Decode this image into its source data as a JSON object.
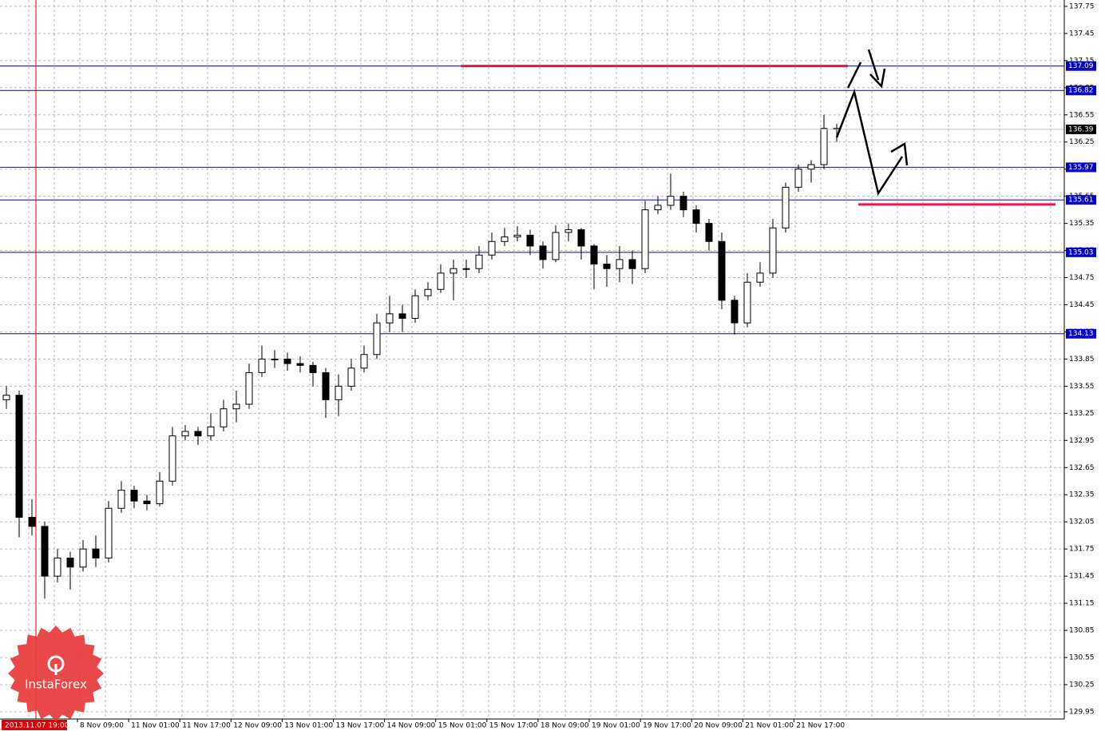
{
  "chart_data": {
    "type": "candlestick",
    "brand": "InstaForex",
    "x_labels": [
      "2013.11.07 19:00",
      "8 Nov 09:00",
      "11 Nov 01:00",
      "11 Nov 17:00",
      "12 Nov 09:00",
      "13 Nov 01:00",
      "13 Nov 17:00",
      "14 Nov 09:00",
      "15 Nov 01:00",
      "15 Nov 17:00",
      "18 Nov 09:00",
      "19 Nov 01:00",
      "19 Nov 17:00",
      "20 Nov 09:00",
      "21 Nov 01:00",
      "21 Nov 17:00"
    ],
    "ylim": [
      129.87,
      137.82
    ],
    "yticks": [
      129.95,
      130.25,
      130.55,
      130.85,
      131.15,
      131.45,
      131.75,
      132.05,
      132.35,
      132.65,
      132.95,
      133.25,
      133.55,
      133.85,
      134.15,
      134.45,
      134.75,
      135.05,
      135.35,
      135.65,
      135.95,
      136.25,
      136.55,
      136.85,
      137.15,
      137.45,
      137.75
    ],
    "grid": true,
    "levels": [
      137.09,
      136.82,
      135.97,
      135.61,
      135.03,
      134.13
    ],
    "levels_color": "#0000c8",
    "marked_levels": [
      137.09,
      135.56
    ],
    "marked_color": "#e8174a",
    "current_price": 136.39,
    "open": [
      133.4,
      133.45,
      132.1,
      132.0,
      131.45,
      131.65,
      131.55,
      131.75,
      131.65,
      132.2,
      132.4,
      132.28,
      132.25,
      132.5,
      133.0,
      133.05,
      133.0,
      133.1,
      133.3,
      133.35,
      133.7,
      133.85,
      133.85,
      133.8,
      133.78,
      133.7,
      133.4,
      133.55,
      133.75,
      133.9,
      134.25,
      134.35,
      134.3,
      134.55,
      134.62,
      134.8,
      134.85,
      134.85,
      135.0,
      135.15,
      135.2,
      135.22,
      135.1,
      134.95,
      135.25,
      135.28,
      135.1,
      134.9,
      134.85,
      134.95,
      134.85,
      135.5,
      135.55,
      135.65,
      135.5,
      135.35,
      135.15,
      134.5,
      134.25,
      134.7,
      134.8,
      135.3,
      135.75,
      135.95,
      136.0,
      136.4
    ],
    "high": [
      133.55,
      133.5,
      132.3,
      132.05,
      131.75,
      131.72,
      131.85,
      131.9,
      132.28,
      132.5,
      132.45,
      132.35,
      132.6,
      133.1,
      133.12,
      133.1,
      133.25,
      133.4,
      133.5,
      133.8,
      134.0,
      133.95,
      133.92,
      133.88,
      133.82,
      133.75,
      133.68,
      133.85,
      134.0,
      134.35,
      134.55,
      134.45,
      134.62,
      134.7,
      134.9,
      134.95,
      134.95,
      135.1,
      135.25,
      135.3,
      135.32,
      135.28,
      135.15,
      135.33,
      135.35,
      135.3,
      135.12,
      135.0,
      135.1,
      135.05,
      135.6,
      135.65,
      135.9,
      135.7,
      135.55,
      135.4,
      135.25,
      134.55,
      134.8,
      134.92,
      135.4,
      135.8,
      136.0,
      136.05,
      136.55,
      136.45
    ],
    "low": [
      133.3,
      131.88,
      131.9,
      131.2,
      131.38,
      131.3,
      131.5,
      131.55,
      131.6,
      132.15,
      132.2,
      132.18,
      132.22,
      132.45,
      132.95,
      132.9,
      132.95,
      133.05,
      133.15,
      133.3,
      133.65,
      133.75,
      133.72,
      133.7,
      133.55,
      133.2,
      133.22,
      133.5,
      133.7,
      133.85,
      134.15,
      134.15,
      134.25,
      134.5,
      134.58,
      134.5,
      134.75,
      134.8,
      134.95,
      135.1,
      135.15,
      135.0,
      134.85,
      134.92,
      135.15,
      134.95,
      134.62,
      134.65,
      134.7,
      134.68,
      134.8,
      135.45,
      135.5,
      135.42,
      135.25,
      135.05,
      134.4,
      134.12,
      134.2,
      134.65,
      134.75,
      135.25,
      135.7,
      135.8,
      135.95,
      136.25
    ],
    "close": [
      133.45,
      132.1,
      132.0,
      131.45,
      131.65,
      131.55,
      131.75,
      131.65,
      132.2,
      132.4,
      132.28,
      132.25,
      132.5,
      133.0,
      133.05,
      133.0,
      133.1,
      133.3,
      133.35,
      133.7,
      133.85,
      133.85,
      133.8,
      133.78,
      133.7,
      133.4,
      133.55,
      133.75,
      133.9,
      134.25,
      134.35,
      134.3,
      134.55,
      134.62,
      134.8,
      134.85,
      134.85,
      135.0,
      135.15,
      135.2,
      135.22,
      135.1,
      134.95,
      135.25,
      135.28,
      135.1,
      134.9,
      134.85,
      134.95,
      134.85,
      135.5,
      135.55,
      135.65,
      135.5,
      135.35,
      135.15,
      134.5,
      134.25,
      134.7,
      134.8,
      135.3,
      135.75,
      135.95,
      136.0,
      136.4,
      136.39
    ]
  }
}
